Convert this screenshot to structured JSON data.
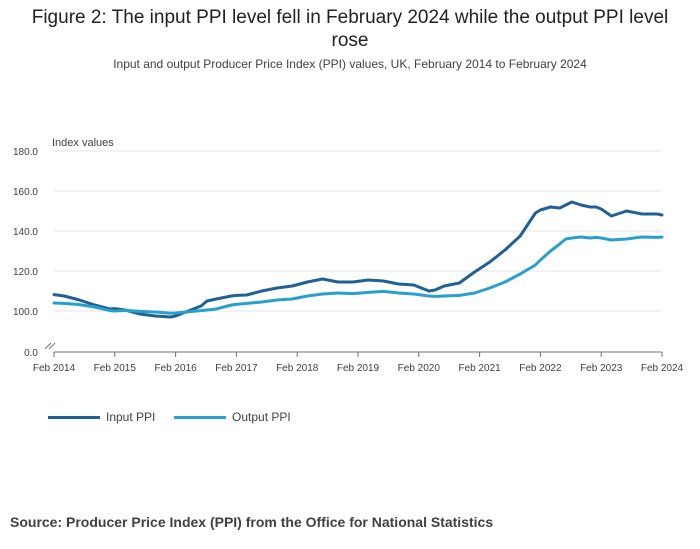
{
  "title": "Figure 2: The input PPI level fell in February 2024 while the output PPI level rose",
  "subtitle": "Input and output Producer Price Index (PPI) values, UK, February 2014 to February 2024",
  "source": "Source: Producer Price Index (PPI) from the Office for National Statistics",
  "colors": {
    "input": "#206095",
    "output": "#27a0cc",
    "grid": "#e6e6e6",
    "axis": "#707070"
  },
  "chart_data": {
    "type": "line",
    "title": "Figure 2: The input PPI level fell in February 2024 while the output PPI level rose",
    "ylabel": "Index values",
    "xlabel": "",
    "ylim": [
      0,
      180
    ],
    "yticks": [
      "0.0",
      "100.0",
      "120.0",
      "140.0",
      "160.0",
      "180.0"
    ],
    "ytick_values": [
      0,
      100,
      120,
      140,
      160,
      180
    ],
    "axis_break": "between 0 and 100",
    "xticks": [
      "Feb 2014",
      "Feb 2015",
      "Feb 2016",
      "Feb 2017",
      "Feb 2018",
      "Feb 2019",
      "Feb 2020",
      "Feb 2021",
      "Feb 2022",
      "Feb 2023",
      "Feb 2024"
    ],
    "xtick_values": [
      2014.083,
      2015.083,
      2016.083,
      2017.083,
      2018.083,
      2019.083,
      2020.083,
      2021.083,
      2022.083,
      2023.083,
      2024.083
    ],
    "legend": "bottom-left",
    "series": [
      {
        "name": "Input PPI",
        "x": [
          2014.083,
          2014.25,
          2014.5,
          2014.75,
          2015.0,
          2015.083,
          2015.25,
          2015.5,
          2015.75,
          2016.0,
          2016.083,
          2016.25,
          2016.5,
          2016.6,
          2016.75,
          2017.0,
          2017.083,
          2017.25,
          2017.5,
          2017.75,
          2018.0,
          2018.25,
          2018.5,
          2018.75,
          2019.0,
          2019.25,
          2019.5,
          2019.75,
          2020.0,
          2020.25,
          2020.35,
          2020.5,
          2020.75,
          2021.0,
          2021.25,
          2021.5,
          2021.75,
          2022.0,
          2022.083,
          2022.25,
          2022.4,
          2022.5,
          2022.6,
          2022.75,
          2022.9,
          2023.0,
          2023.083,
          2023.25,
          2023.5,
          2023.75,
          2024.0,
          2024.083
        ],
        "values": [
          108.2,
          107.5,
          105.5,
          103.0,
          101.0,
          101.2,
          100.5,
          98.5,
          97.5,
          97.0,
          97.5,
          99.5,
          102.5,
          105.0,
          106.0,
          107.5,
          107.8,
          108.0,
          110.0,
          111.5,
          112.5,
          114.5,
          116.0,
          114.5,
          114.5,
          115.5,
          115.0,
          113.5,
          113.0,
          110.0,
          110.5,
          112.5,
          114.0,
          119.5,
          124.5,
          130.5,
          137.5,
          149.0,
          150.5,
          152.0,
          151.5,
          153.0,
          154.5,
          153.0,
          152.0,
          152.0,
          151.0,
          147.5,
          150.0,
          148.5,
          148.5,
          148.0
        ]
      },
      {
        "name": "Output PPI",
        "x": [
          2014.083,
          2014.25,
          2014.5,
          2014.75,
          2015.0,
          2015.083,
          2015.25,
          2015.5,
          2015.75,
          2016.0,
          2016.083,
          2016.25,
          2016.5,
          2016.75,
          2017.0,
          2017.083,
          2017.25,
          2017.5,
          2017.75,
          2018.0,
          2018.25,
          2018.5,
          2018.75,
          2019.0,
          2019.25,
          2019.5,
          2019.75,
          2020.0,
          2020.25,
          2020.35,
          2020.5,
          2020.75,
          2021.0,
          2021.25,
          2021.5,
          2021.75,
          2022.0,
          2022.083,
          2022.25,
          2022.4,
          2022.5,
          2022.6,
          2022.75,
          2022.9,
          2023.0,
          2023.083,
          2023.25,
          2023.5,
          2023.75,
          2024.0,
          2024.083
        ],
        "values": [
          104.0,
          103.8,
          103.2,
          102.0,
          100.2,
          100.0,
          100.3,
          99.8,
          99.5,
          98.9,
          99.0,
          99.5,
          100.2,
          101.0,
          103.0,
          103.3,
          103.8,
          104.5,
          105.5,
          106.0,
          107.5,
          108.5,
          109.0,
          108.7,
          109.3,
          109.8,
          109.0,
          108.5,
          107.5,
          107.3,
          107.5,
          107.8,
          109.0,
          111.5,
          114.5,
          118.5,
          123.0,
          125.5,
          130.0,
          133.5,
          136.0,
          136.5,
          137.0,
          136.5,
          136.8,
          136.5,
          135.5,
          136.0,
          137.0,
          136.8,
          137.0
        ]
      }
    ]
  }
}
